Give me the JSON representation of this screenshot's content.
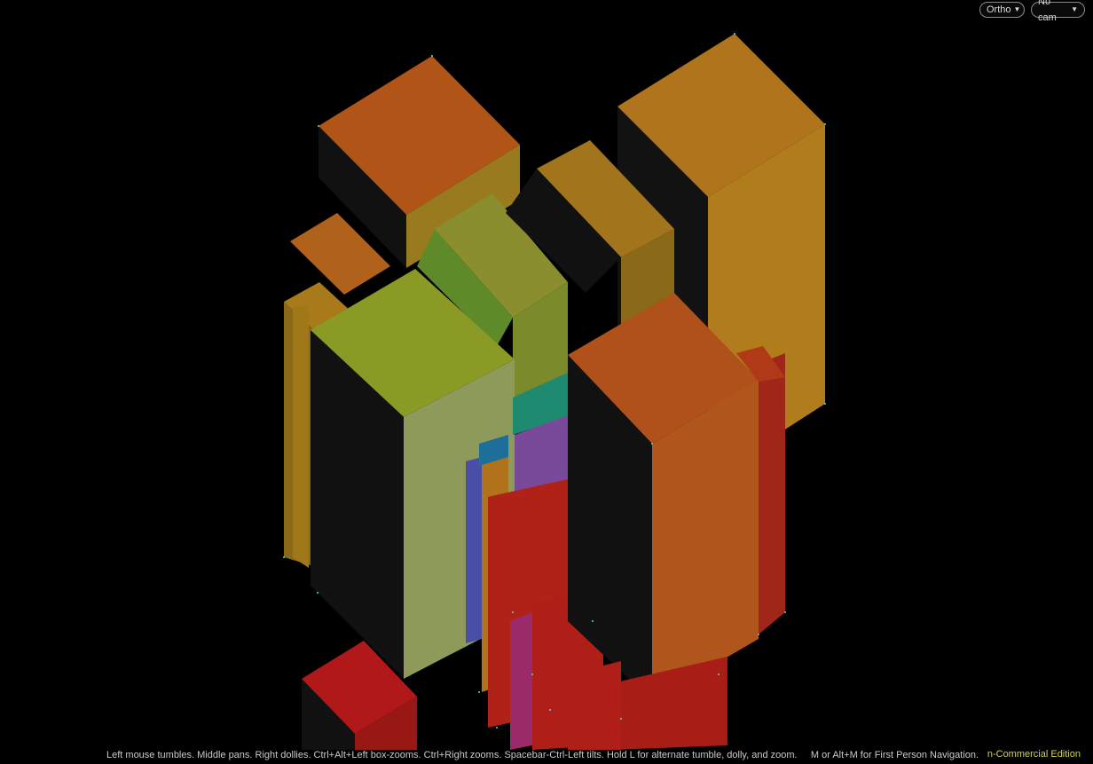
{
  "toolbar": {
    "projection_label": "Ortho",
    "camera_label": "No cam"
  },
  "status": {
    "help_text": "Left mouse tumbles. Middle pans. Right dollies. Ctrl+Alt+Left box-zooms. Ctrl+Right zooms. Spacebar-Ctrl-Left tilts. Hold L for alternate tumble, dolly, and zoom.     M or Alt+M for First Person Navigation.",
    "edition_text": "n-Commercial Edition"
  },
  "icons": {
    "dropdown": "chevron-down-icon"
  },
  "colors": {
    "background": "#000000",
    "edition_text": "#d7d04a",
    "point_highlight": "#4fd6e6"
  }
}
